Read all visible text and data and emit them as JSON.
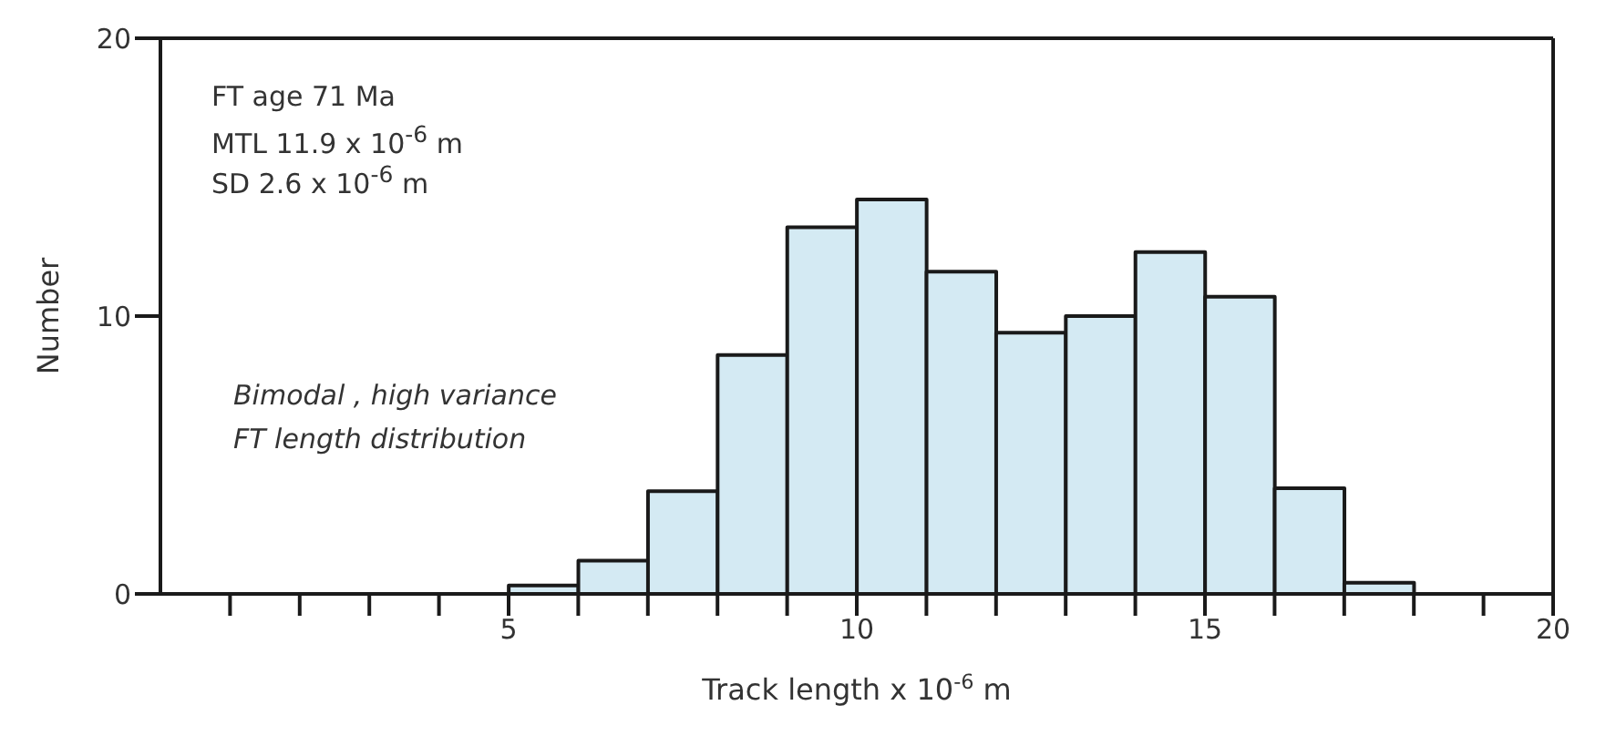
{
  "chart_data": {
    "type": "histogram",
    "xlabel": "Track length x 10$^{-6}$ m",
    "ylabel": "Number",
    "bins": [
      5,
      6,
      7,
      8,
      9,
      10,
      11,
      12,
      13,
      14,
      15,
      16,
      17,
      18
    ],
    "values": [
      0.3,
      1.2,
      3.7,
      8.6,
      13.2,
      14.2,
      11.6,
      9.4,
      10,
      12.3,
      10.7,
      3.8,
      0.4
    ],
    "color": "#d4eaf3",
    "xlim": [
      0,
      20
    ],
    "xticks": [
      {
        "value": 1,
        "label": null
      },
      {
        "value": 2,
        "label": null
      },
      {
        "value": 3,
        "label": null
      },
      {
        "value": 4,
        "label": null
      },
      5,
      {
        "value": 6,
        "label": null
      },
      {
        "value": 7,
        "label": null
      },
      {
        "value": 8,
        "label": null
      },
      {
        "value": 9,
        "label": null
      },
      10,
      {
        "value": 11,
        "label": null
      },
      {
        "value": 12,
        "label": null
      },
      {
        "value": 13,
        "label": null
      },
      {
        "value": 14,
        "label": null
      },
      15,
      {
        "value": 16,
        "label": null
      },
      {
        "value": 17,
        "label": null
      },
      {
        "value": 18,
        "label": null
      },
      {
        "value": 19,
        "label": null
      },
      20
    ],
    "ylim": [
      0,
      20
    ],
    "yticks": [
      0,
      10,
      20
    ],
    "annotations": [
      "FT age 71 Ma",
      "MTL 11.9 x 10$^{-6}$ m",
      "SD 2.6 x 10$^{-6}$ m",
      "Bimodal , high variance",
      "FT length distribution"
    ]
  }
}
